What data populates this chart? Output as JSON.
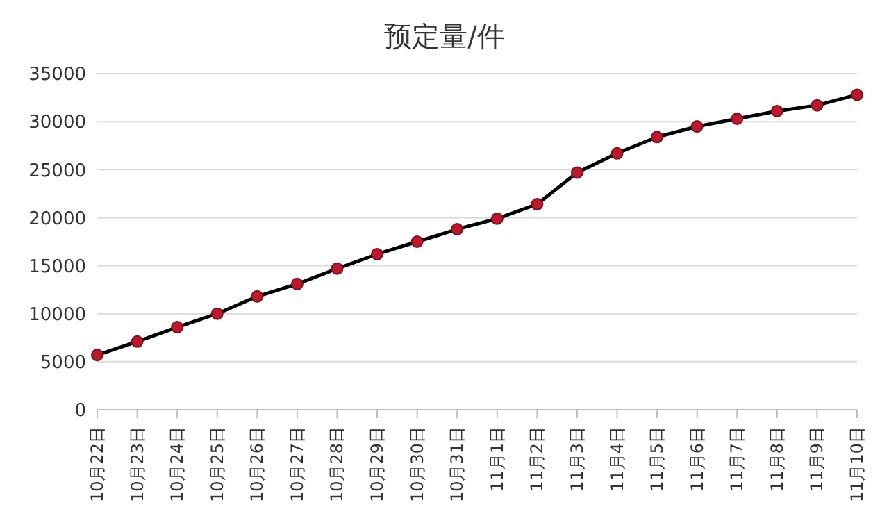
{
  "chart_data": {
    "type": "line",
    "title": "预定量/件",
    "categories": [
      "10月22日",
      "10月23日",
      "10月24日",
      "10月25日",
      "10月26日",
      "10月27日",
      "10月28日",
      "10月29日",
      "10月30日",
      "10月31日",
      "11月1日",
      "11月2日",
      "11月3日",
      "11月4日",
      "11月5日",
      "11月6日",
      "11月7日",
      "11月8日",
      "11月9日",
      "11月10日"
    ],
    "series": [
      {
        "color": "#000000",
        "values": [
          5700,
          7100,
          8600,
          10000,
          11800,
          13100,
          14700,
          16200,
          17500,
          18800,
          19900,
          21400,
          24700,
          26700,
          28400,
          29500,
          30300,
          31100,
          31700,
          32800
        ]
      }
    ],
    "ylim": [
      0,
      35000
    ],
    "yticks": [
      0,
      5000,
      10000,
      15000,
      20000,
      25000,
      30000,
      35000
    ],
    "grid": "y",
    "marker": "circle"
  }
}
